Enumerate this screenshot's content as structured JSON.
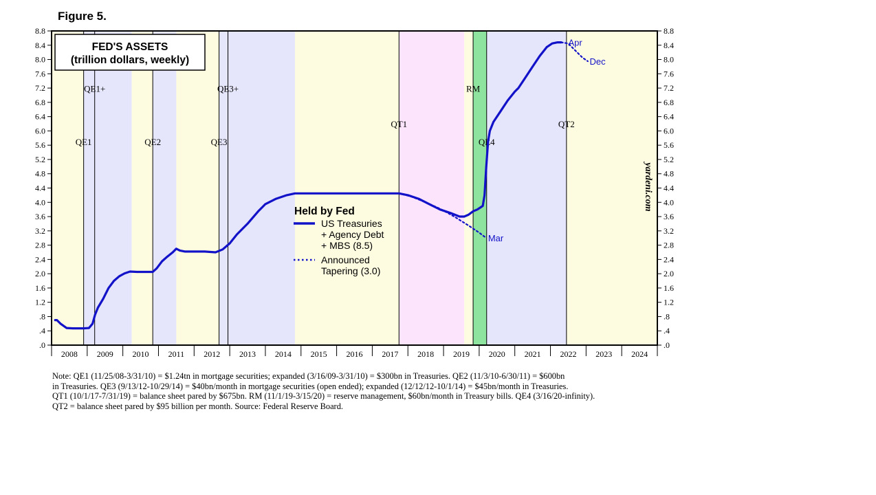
{
  "figure_label": "Figure 5.",
  "chart_data": {
    "type": "line",
    "title": "FED'S ASSETS",
    "subtitle": "(trillion dollars, weekly)",
    "watermark": "yardeni.com",
    "x_range": [
      2008.0,
      2025.0
    ],
    "y_range": [
      0,
      8.8
    ],
    "y_ticks": [
      ".0",
      ".4",
      ".8",
      "1.2",
      "1.6",
      "2.0",
      "2.4",
      "2.8",
      "3.2",
      "3.6",
      "4.0",
      "4.4",
      "4.8",
      "5.2",
      "5.6",
      "6.0",
      "6.4",
      "6.8",
      "7.2",
      "7.6",
      "8.0",
      "8.4",
      "8.8"
    ],
    "x_tick_labels": [
      "2008",
      "2009",
      "2010",
      "2011",
      "2012",
      "2013",
      "2014",
      "2015",
      "2016",
      "2017",
      "2018",
      "2019",
      "2020",
      "2021",
      "2022",
      "2023",
      "2024"
    ],
    "grid": false,
    "legend": {
      "title": "Held by Fed",
      "placement": "center",
      "items": [
        {
          "lines": [
            "US Treasuries",
            "+ Agency Debt",
            "+ MBS (8.5)"
          ],
          "style": "solid"
        },
        {
          "lines": [
            "Announced",
            "Tapering (3.0)"
          ],
          "style": "dotted"
        }
      ]
    },
    "colors": {
      "line": "#1212c8",
      "yellow": "#fdfbe0",
      "blue": "#e5e5fb",
      "pink": "#fce4fc",
      "green": "#8ee39e"
    },
    "bands": [
      {
        "from": 2008.0,
        "to": 2008.9,
        "color": "yellow"
      },
      {
        "from": 2008.9,
        "to": 2010.25,
        "color": "blue"
      },
      {
        "from": 2010.25,
        "to": 2010.84,
        "color": "yellow"
      },
      {
        "from": 2010.84,
        "to": 2011.5,
        "color": "blue"
      },
      {
        "from": 2011.5,
        "to": 2012.7,
        "color": "yellow"
      },
      {
        "from": 2012.7,
        "to": 2014.83,
        "color": "blue"
      },
      {
        "from": 2014.83,
        "to": 2017.75,
        "color": "yellow"
      },
      {
        "from": 2017.75,
        "to": 2019.58,
        "color": "pink"
      },
      {
        "from": 2019.58,
        "to": 2019.83,
        "color": "yellow"
      },
      {
        "from": 2019.83,
        "to": 2020.21,
        "color": "green"
      },
      {
        "from": 2020.21,
        "to": 2022.45,
        "color": "blue"
      },
      {
        "from": 2022.45,
        "to": 2025.0,
        "color": "yellow"
      }
    ],
    "events": [
      {
        "label": "QE1",
        "x": 2008.9,
        "label_y": 5.6
      },
      {
        "label": "QE1+",
        "x": 2009.21,
        "label_y": 7.1
      },
      {
        "label": "QE2",
        "x": 2010.84,
        "label_y": 5.6
      },
      {
        "label": "QE3",
        "x": 2012.7,
        "label_y": 5.6
      },
      {
        "label": "QE3+",
        "x": 2012.95,
        "label_y": 7.1
      },
      {
        "label": "QT1",
        "x": 2017.75,
        "label_y": 6.1
      },
      {
        "label": "RM",
        "x": 2019.83,
        "label_y": 7.1
      },
      {
        "label": "QE4",
        "x": 2020.21,
        "label_y": 5.6
      },
      {
        "label": "QT2",
        "x": 2022.45,
        "label_y": 6.1
      }
    ],
    "series": [
      {
        "style": "solid",
        "x": [
          2008.1,
          2008.15,
          2008.25,
          2008.42,
          2008.6,
          2008.75,
          2008.9,
          2009.05,
          2009.15,
          2009.22,
          2009.3,
          2009.45,
          2009.6,
          2009.75,
          2009.9,
          2010.05,
          2010.2,
          2010.4,
          2010.6,
          2010.84,
          2010.95,
          2011.1,
          2011.25,
          2011.4,
          2011.5,
          2011.6,
          2011.75,
          2011.9,
          2012.0,
          2012.3,
          2012.6,
          2012.8,
          2013.0,
          2013.2,
          2013.5,
          2013.8,
          2014.0,
          2014.3,
          2014.6,
          2014.83,
          2015.0,
          2015.5,
          2016.0,
          2016.5,
          2017.0,
          2017.5,
          2017.75,
          2018.0,
          2018.3,
          2018.6,
          2018.9,
          2019.2,
          2019.45,
          2019.58,
          2019.7,
          2019.83,
          2019.95,
          2020.1,
          2020.15,
          2020.2,
          2020.25,
          2020.3,
          2020.4,
          2020.6,
          2020.8,
          2021.0,
          2021.1,
          2021.3,
          2021.5,
          2021.7,
          2021.9,
          2022.05,
          2022.2,
          2022.3
        ],
        "y": [
          0.7,
          0.7,
          0.6,
          0.48,
          0.47,
          0.47,
          0.47,
          0.48,
          0.6,
          0.85,
          1.05,
          1.3,
          1.6,
          1.8,
          1.93,
          2.01,
          2.06,
          2.05,
          2.05,
          2.05,
          2.15,
          2.35,
          2.48,
          2.6,
          2.7,
          2.65,
          2.62,
          2.62,
          2.62,
          2.62,
          2.6,
          2.68,
          2.85,
          3.1,
          3.4,
          3.75,
          3.95,
          4.1,
          4.2,
          4.25,
          4.25,
          4.25,
          4.25,
          4.25,
          4.25,
          4.25,
          4.25,
          4.2,
          4.1,
          3.95,
          3.8,
          3.7,
          3.6,
          3.6,
          3.65,
          3.75,
          3.8,
          3.9,
          4.2,
          5.0,
          5.7,
          6.0,
          6.25,
          6.55,
          6.85,
          7.1,
          7.2,
          7.5,
          7.8,
          8.1,
          8.35,
          8.45,
          8.48,
          8.48
        ]
      },
      {
        "style": "dotted",
        "x": [
          2017.75,
          2018.1,
          2018.5,
          2018.9,
          2019.3,
          2019.7,
          2020.0,
          2020.2
        ],
        "y": [
          4.25,
          4.16,
          4.0,
          3.82,
          3.6,
          3.35,
          3.15,
          3.0
        ]
      },
      {
        "style": "dotted",
        "x": [
          2022.3,
          2022.5,
          2022.7,
          2022.9,
          2023.05
        ],
        "y": [
          8.48,
          8.45,
          8.25,
          8.05,
          7.95
        ]
      }
    ],
    "annotations": [
      {
        "text": "Apr",
        "x": 2022.5,
        "y": 8.48
      },
      {
        "text": "Dec",
        "x": 2023.1,
        "y": 7.95
      },
      {
        "text": "Mar",
        "x": 2020.25,
        "y": 3.0
      }
    ]
  },
  "note_lines": [
    "Note: QE1 (11/25/08-3/31/10) = $1.24tn in mortgage securities; expanded (3/16/09-3/31/10) = $300bn in Treasuries. QE2 (11/3/10-6/30/11) = $600bn",
    "in Treasuries. QE3 (9/13/12-10/29/14) = $40bn/month in mortgage securities (open ended); expanded (12/12/12-10/1/14) = $45bn/month in Treasuries.",
    "QT1 (10/1/17-7/31/19) = balance sheet pared by $675bn. RM (11/1/19-3/15/20) = reserve management, $60bn/month in Treasury bills. QE4 (3/16/20-infinity).",
    "QT2 = balance sheet pared by $95 billion per month. Source: Federal Reserve Board."
  ]
}
